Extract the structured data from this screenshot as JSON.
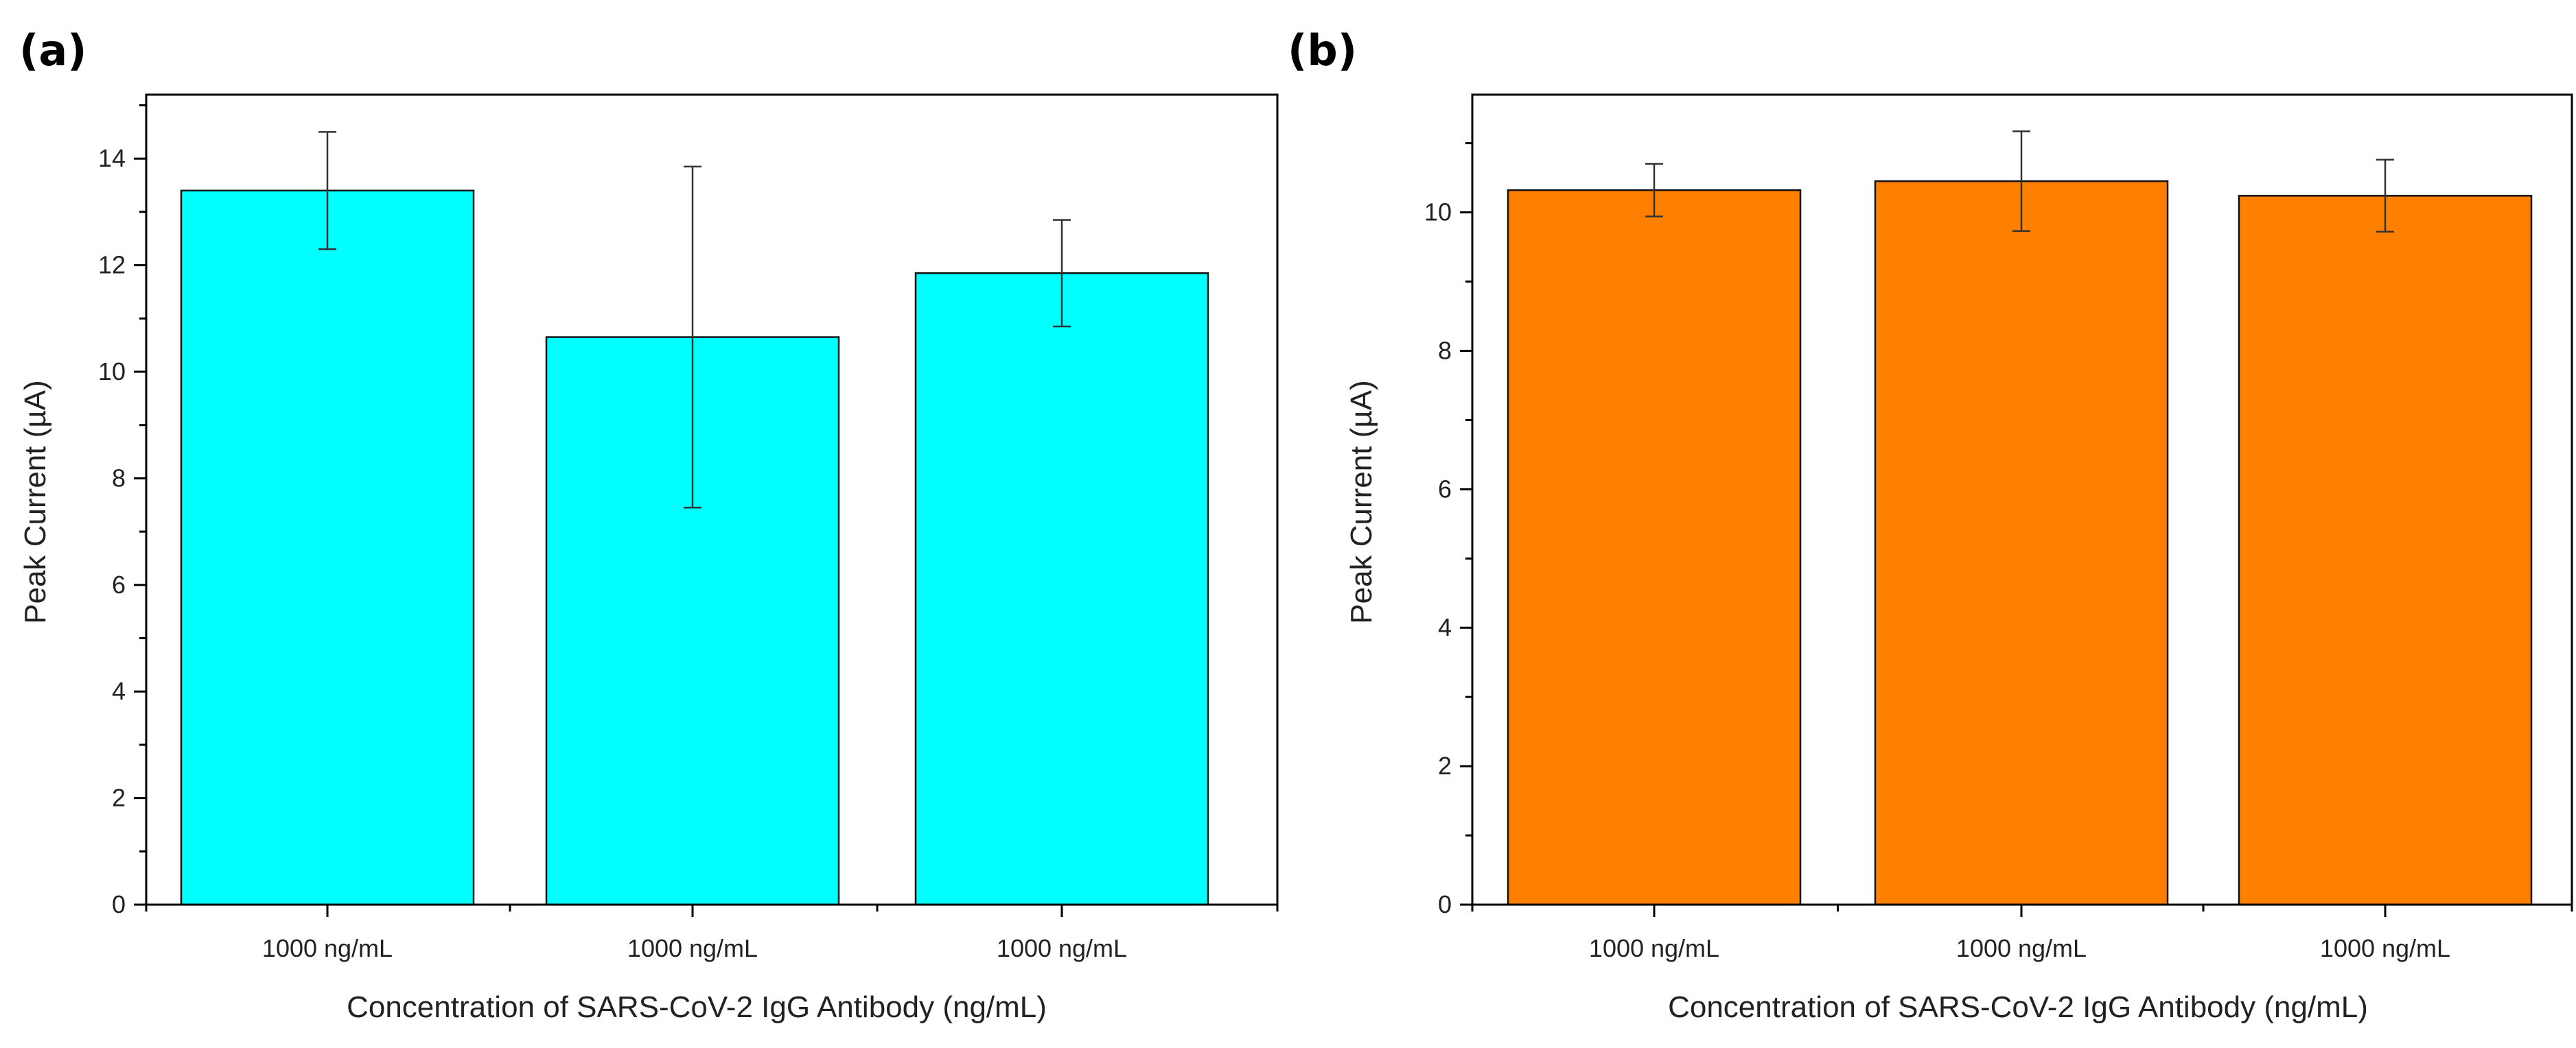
{
  "chart_data": [
    {
      "type": "bar",
      "panel_label": "(a)",
      "categories": [
        "1000 ng/mL",
        "1000 ng/mL",
        "1000 ng/mL"
      ],
      "values": [
        13.4,
        10.65,
        11.85
      ],
      "errors": [
        1.1,
        3.2,
        1.0
      ],
      "bar_color": "#00FFFF",
      "xlabel": "Concentration of SARS-CoV-2 IgG Antibody (ng/mL)",
      "ylabel": "Peak Current (µA)",
      "ylim": [
        0,
        15.2
      ],
      "yticks": [
        0,
        2,
        4,
        6,
        8,
        10,
        12,
        14
      ],
      "ytick_labels": [
        "0",
        "2",
        "4",
        "6",
        "8",
        "10",
        "12",
        "14"
      ],
      "grid": false
    },
    {
      "type": "bar",
      "panel_label": "(b)",
      "categories": [
        "1000 ng/mL",
        "1000 ng/mL",
        "1000 ng/mL"
      ],
      "values": [
        10.32,
        10.45,
        10.24
      ],
      "errors": [
        0.38,
        0.72,
        0.52
      ],
      "bar_color": "#FF8000",
      "xlabel": "Concentration of SARS-CoV-2 IgG Antibody (ng/mL)",
      "ylabel": "Peak Current (µA)",
      "ylim": [
        0,
        11.7
      ],
      "yticks": [
        0,
        2,
        4,
        6,
        8,
        10
      ],
      "ytick_labels": [
        "0",
        "2",
        "4",
        "6",
        "8",
        "10"
      ],
      "grid": false
    }
  ]
}
